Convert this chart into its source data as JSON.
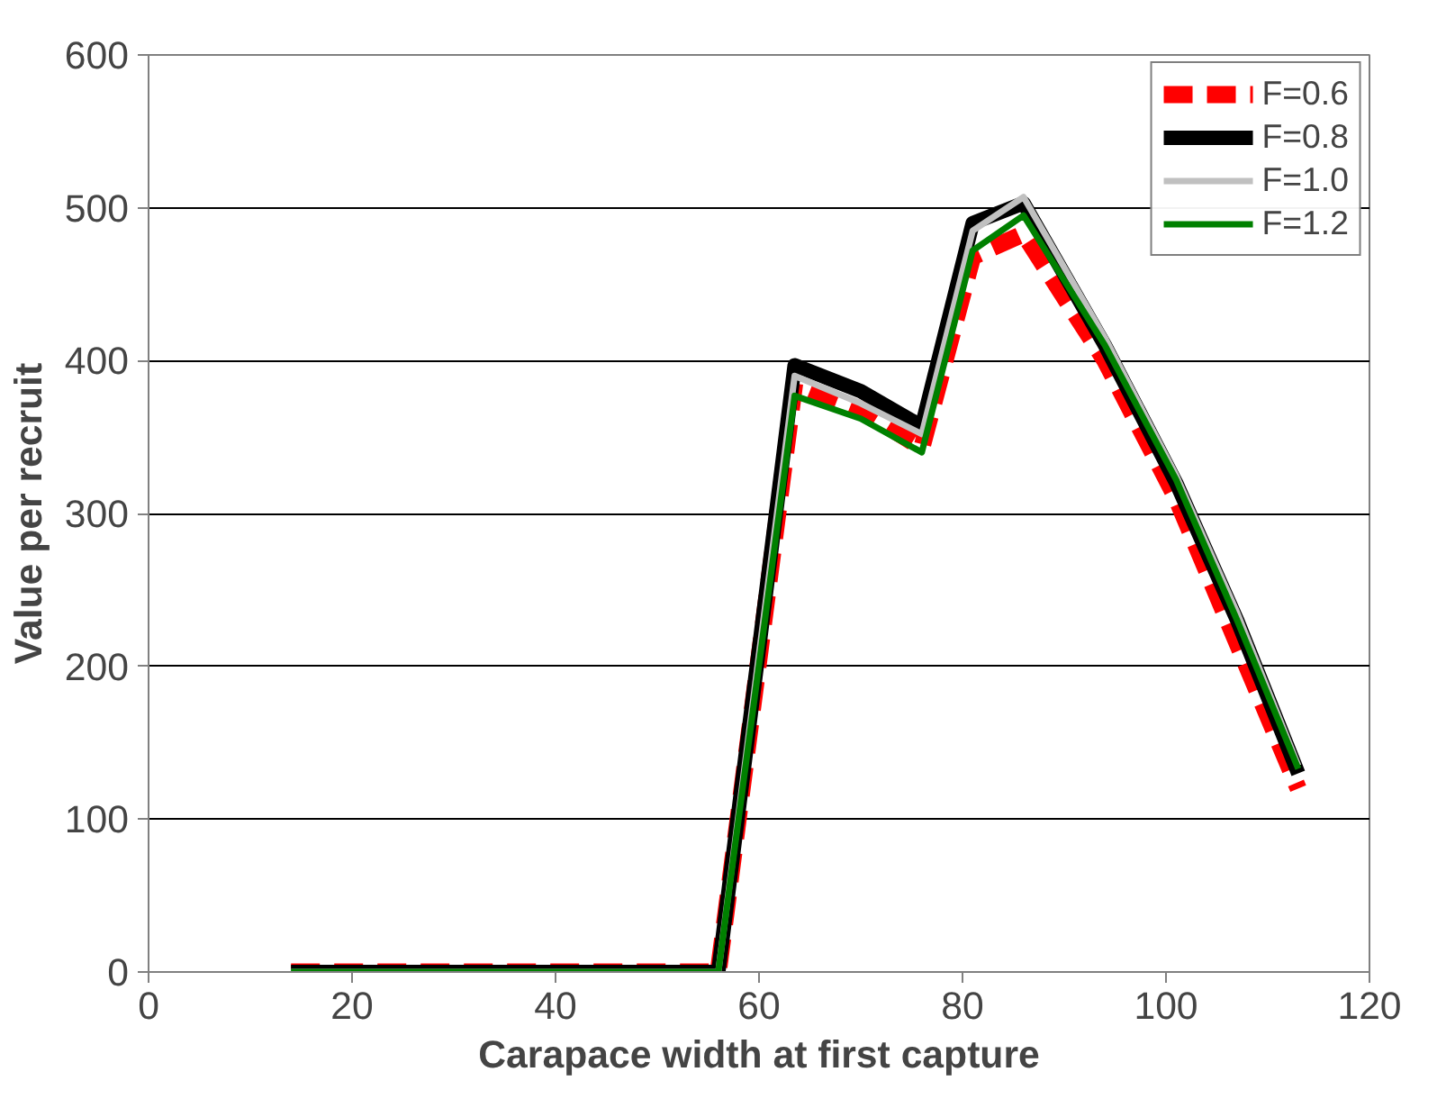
{
  "chart_data": {
    "type": "line",
    "xlabel": "Carapace width at first capture",
    "ylabel": "Value per recruit",
    "x": [
      14,
      56,
      63.5,
      70,
      76,
      81,
      86,
      94,
      101,
      107,
      113
    ],
    "xlim": [
      0,
      120
    ],
    "xticks": [
      0,
      20,
      40,
      60,
      80,
      100,
      120
    ],
    "ylim": [
      0,
      600
    ],
    "yticks": [
      0,
      100,
      200,
      300,
      400,
      500,
      600
    ],
    "grid": "y",
    "legend": "top right",
    "marker": "none",
    "series": [
      {
        "name": "F=0.6",
        "color": "#ff0000",
        "line_style": "dashed",
        "values": [
          0,
          0,
          385,
          368,
          343,
          468,
          483,
          400,
          310,
          215,
          120
        ]
      },
      {
        "name": "F=0.8",
        "color": "#000000",
        "values": [
          0,
          0,
          397,
          380,
          357,
          490,
          503,
          410,
          320,
          230,
          130
        ]
      },
      {
        "name": "F=1.0",
        "color": "#c0c0c0",
        "values": [
          0,
          0,
          390,
          372,
          352,
          485,
          507,
          415,
          325,
          235,
          135
        ]
      },
      {
        "name": "F=1.2",
        "color": "#008000",
        "values": [
          0,
          0,
          377,
          362,
          340,
          472,
          495,
          410,
          322,
          230,
          133
        ]
      }
    ]
  }
}
